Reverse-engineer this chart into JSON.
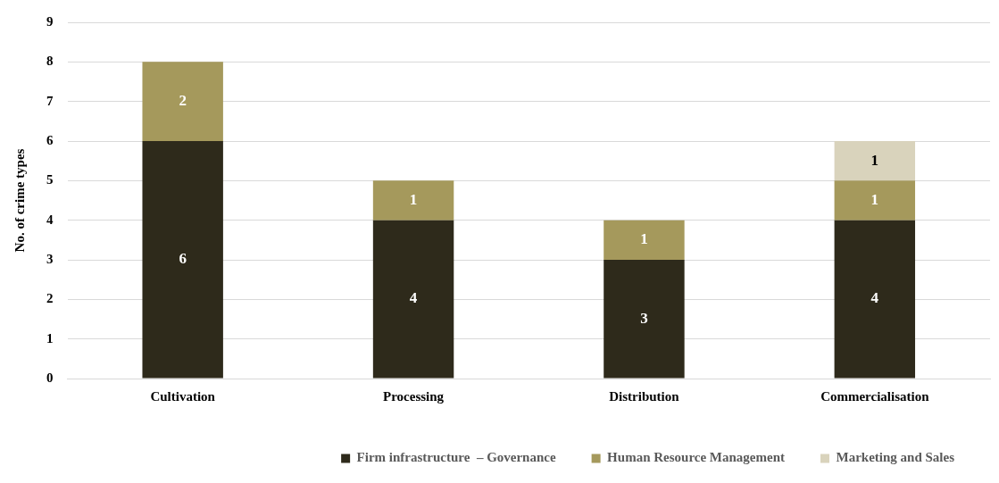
{
  "chart_data": {
    "type": "bar",
    "ylabel": "No. of crime types",
    "categories": [
      "Cultivation",
      "Processing",
      "Distribution",
      "Commercialisation"
    ],
    "series": [
      {
        "name": "Firm infrastructure  – Governance",
        "color": "#2e2a1b",
        "values": [
          6,
          4,
          3,
          4
        ]
      },
      {
        "name": "Human Resource Management",
        "color": "#a5995c",
        "values": [
          2,
          1,
          1,
          1
        ]
      },
      {
        "name": "Marketing and Sales",
        "color": "#d9d3bc",
        "values": [
          null,
          null,
          null,
          1
        ]
      }
    ],
    "stacked": true,
    "ylim": [
      0,
      9
    ],
    "yticks": [
      0,
      1,
      2,
      3,
      4,
      5,
      6,
      7,
      8,
      9
    ],
    "grid": "y",
    "legend": "bottom",
    "data_labels": true
  }
}
